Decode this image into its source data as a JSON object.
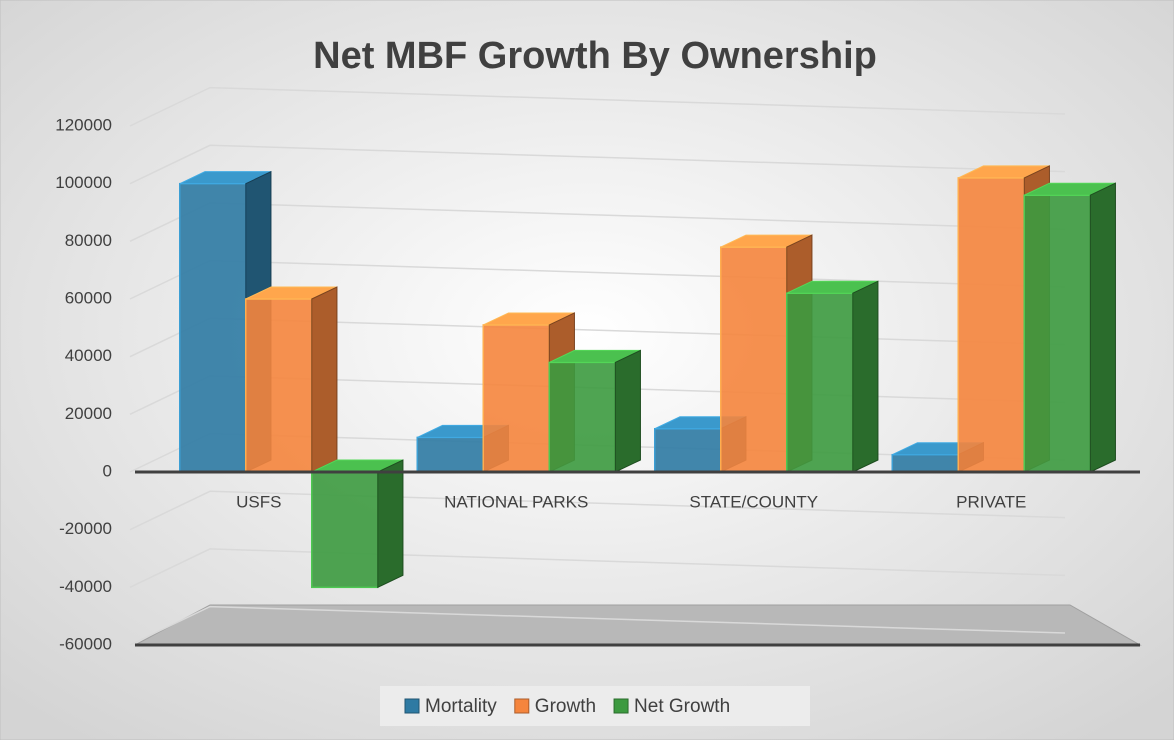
{
  "chart_data": {
    "type": "bar",
    "title": "Net MBF Growth By Ownership",
    "categories": [
      "USFS",
      "NATIONAL PARKS",
      "STATE/COUNTY",
      "PRIVATE"
    ],
    "series": [
      {
        "name": "Mortality",
        "color": "#2e7aa3",
        "values": [
          100000,
          12000,
          15000,
          6000
        ]
      },
      {
        "name": "Growth",
        "color": "#f5853d",
        "values": [
          60000,
          51000,
          78000,
          102000
        ]
      },
      {
        "name": "Net Growth",
        "color": "#3c9a3f",
        "values": [
          -40000,
          38000,
          62000,
          96000
        ]
      }
    ],
    "ylim": [
      -60000,
      120000
    ],
    "yticks": [
      -60000,
      -40000,
      -20000,
      0,
      20000,
      40000,
      60000,
      80000,
      100000,
      120000
    ],
    "grid": true,
    "legend": "bottom"
  }
}
